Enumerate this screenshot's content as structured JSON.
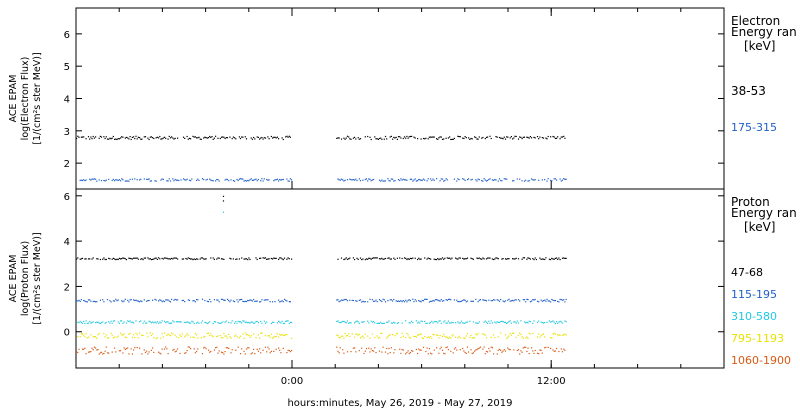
{
  "chart_data": [
    {
      "type": "scatter",
      "panel": "electron",
      "ylabel": [
        "ACE EPAM",
        "log(Electron Flux)",
        "[1/(cm²s ster MeV)]"
      ],
      "ylim": [
        1.2,
        6.8
      ],
      "yticks": [
        2,
        3,
        4,
        5,
        6
      ],
      "legend": {
        "title": [
          "Electron",
          "Energy ran",
          "[keV]"
        ],
        "placement": "right"
      },
      "gaps": [
        [
          0.0,
          2.0
        ]
      ],
      "series": [
        {
          "name": "38-53",
          "color": "#000000",
          "x_range": [
            -10.0,
            12.7
          ],
          "y_level": 2.8,
          "noise": 0.05
        },
        {
          "name": "175-315",
          "color": "#1f5fc8",
          "x_range": [
            -10.0,
            12.7
          ],
          "y_level": 1.5,
          "noise": 0.04
        }
      ]
    },
    {
      "type": "scatter",
      "panel": "proton",
      "ylabel": [
        "ACE EPAM",
        "log(Proton Flux)",
        "[1/(cm²s ster MeV)]"
      ],
      "ylim": [
        -1.6,
        6.3
      ],
      "yticks": [
        0,
        2,
        4,
        6
      ],
      "legend": {
        "title": [
          "Proton",
          "Energy ran",
          "[keV]"
        ],
        "placement": "right"
      },
      "xaxis": {
        "range": [
          -10.0,
          20.0
        ],
        "ticks": [
          {
            "value": 0,
            "label": "0:00"
          },
          {
            "value": 12,
            "label": "12:00"
          }
        ],
        "minor_step": 2,
        "label": "hours:minutes, May 26, 2019 - May 27, 2019"
      },
      "gaps": [
        [
          0.0,
          2.0
        ]
      ],
      "series": [
        {
          "name": "47-68",
          "color": "#000000",
          "x_range": [
            -10.0,
            12.7
          ],
          "y_level": 3.25,
          "noise": 0.04
        },
        {
          "name": "115-195",
          "color": "#1f5fc8",
          "x_range": [
            -10.0,
            12.7
          ],
          "y_level": 1.4,
          "noise": 0.06
        },
        {
          "name": "310-580",
          "color": "#22c8e0",
          "x_range": [
            -10.0,
            12.7
          ],
          "y_level": 0.45,
          "noise": 0.06
        },
        {
          "name": "795-1193",
          "color": "#e8e000",
          "x_range": [
            -10.0,
            12.7
          ],
          "y_level": -0.15,
          "noise": 0.12
        },
        {
          "name": "1060-1900",
          "color": "#d85a14",
          "x_range": [
            -10.0,
            12.7
          ],
          "y_level": -0.8,
          "noise": 0.16
        }
      ],
      "annotations": [
        {
          "color": "#000000",
          "points": [
            [
              -3.2,
              6.0
            ],
            [
              -3.2,
              5.8
            ]
          ]
        },
        {
          "color": "#22c8e0",
          "points": [
            [
              -3.2,
              5.3
            ]
          ]
        }
      ]
    }
  ]
}
